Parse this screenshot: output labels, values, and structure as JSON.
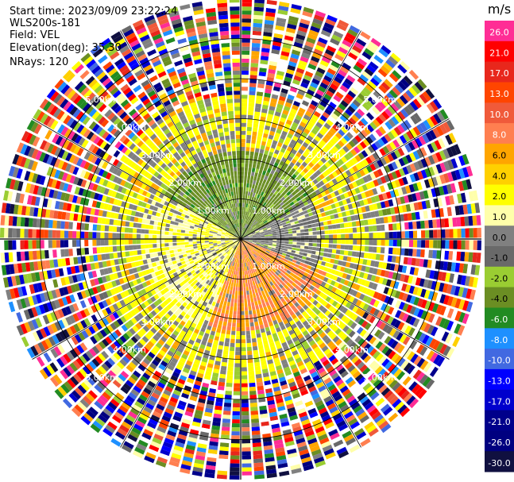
{
  "header": {
    "start_time": "Start time: 2023/09/09 23:22:24",
    "station": "WLS200s-181",
    "field": "Field: VEL",
    "elevation": "Elevation(deg): 35.30",
    "nrays": "NRays: 120"
  },
  "chart_data": {
    "type": "ppi",
    "field": "VEL",
    "unit": "m/s",
    "n_rays": 120,
    "n_gates": 60,
    "max_range_km": 6,
    "range_rings_km": [
      1,
      2,
      3,
      4,
      5
    ],
    "ring_labels": [
      "1.00km",
      "2.00km",
      "3.00km",
      "4.00km",
      "5.00km"
    ],
    "colorbar": {
      "labels": [
        "26.0",
        "21.0",
        "17.0",
        "13.0",
        "10.0",
        "8.0",
        "6.0",
        "4.0",
        "2.0",
        "1.0",
        "0.0",
        "-1.0",
        "-2.0",
        "-4.0",
        "-6.0",
        "-8.0",
        "-10.0",
        "-13.0",
        "-17.0",
        "-21.0",
        "-26.0",
        "-30.0"
      ],
      "colors": [
        "#ff2d95",
        "#ff0000",
        "#e8271c",
        "#ff4500",
        "#f05a3a",
        "#ff7f50",
        "#ffa500",
        "#ffd000",
        "#ffff00",
        "#ffffaa",
        "#808080",
        "#696969",
        "#9acd32",
        "#6b8e23",
        "#228b22",
        "#1e90ff",
        "#4169e1",
        "#0000ff",
        "#0000cd",
        "#00008b",
        "#000080",
        "#101040"
      ]
    },
    "description_sectors": [
      {
        "az_from": 300,
        "az_to": 60,
        "range_km": [
          0,
          2.2
        ],
        "velocity": -3
      },
      {
        "az_from": 60,
        "az_to": 110,
        "range_km": [
          0,
          2.0
        ],
        "velocity": 0
      },
      {
        "az_from": 110,
        "az_to": 200,
        "range_km": [
          0,
          2.3
        ],
        "velocity": 8
      },
      {
        "az_from": 200,
        "az_to": 300,
        "range_km": [
          0,
          2.5
        ],
        "velocity": 2
      }
    ]
  }
}
